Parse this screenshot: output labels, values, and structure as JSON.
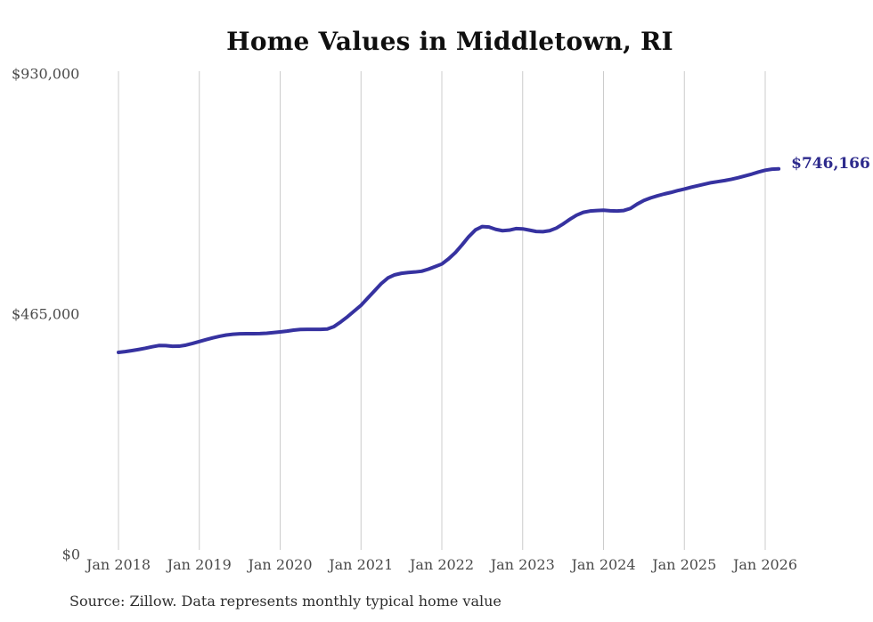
{
  "title": "Home Values in Middletown, RI",
  "source_note": "Source: Zillow. Data represents monthly typical home value",
  "end_label": "$746,166",
  "colors": {
    "line": "#3632a0",
    "end_label_text": "#2d2a8c",
    "gridline": "#cccccc",
    "axis_text": "#4a4a4a",
    "title_text": "#0f0f0f",
    "source_text": "#2e2e2e",
    "background": "#ffffff"
  },
  "chart_data": {
    "type": "line",
    "title": "Home Values in Middletown, RI",
    "xlabel": "",
    "ylabel": "",
    "ylim": [
      0,
      930000
    ],
    "grid": "vertical-only",
    "legend": "none",
    "x_ticks": [
      "Jan 2018",
      "Jan 2019",
      "Jan 2020",
      "Jan 2021",
      "Jan 2022",
      "Jan 2023",
      "Jan 2024",
      "Jan 2025",
      "Jan 2026"
    ],
    "y_ticks": [
      {
        "label": "$930,000",
        "value": 930000
      },
      {
        "label": "$465,000",
        "value": 465000
      },
      {
        "label": "$0",
        "value": 0
      }
    ],
    "start_month": "Jan 2018",
    "end_month": "Mar 2026",
    "frequency": "monthly",
    "latest_value": 746166,
    "series": [
      {
        "name": "Typical home value",
        "values": [
          390900,
          392500,
          394400,
          396600,
          399000,
          401800,
          404200,
          404000,
          402800,
          402900,
          405000,
          408200,
          412000,
          415500,
          419000,
          422000,
          424500,
          426000,
          426800,
          427000,
          427000,
          427300,
          428000,
          429200,
          430500,
          432000,
          434000,
          435200,
          435500,
          435500,
          435500,
          436200,
          441000,
          450000,
          460000,
          471000,
          482000,
          496000,
          510000,
          524000,
          535000,
          541000,
          544000,
          545500,
          546500,
          548000,
          552000,
          557000,
          562000,
          572000,
          584000,
          599000,
          615000,
          628000,
          634500,
          633500,
          629000,
          626500,
          627500,
          630500,
          630000,
          627500,
          625000,
          624500,
          626500,
          631500,
          639500,
          648500,
          656500,
          662000,
          664500,
          665500,
          666000,
          665000,
          664500,
          665500,
          669500,
          678000,
          685000,
          690000,
          694000,
          697500,
          700500,
          704000,
          707000,
          710500,
          713500,
          716500,
          719500,
          721500,
          723500,
          726000,
          729000,
          732500,
          736000,
          740000,
          743500,
          745500,
          746166
        ]
      }
    ]
  }
}
